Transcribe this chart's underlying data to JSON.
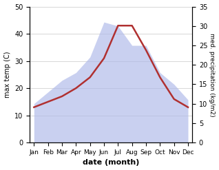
{
  "months": [
    "Jan",
    "Feb",
    "Mar",
    "Apr",
    "May",
    "Jun",
    "Jul",
    "Aug",
    "Sep",
    "Oct",
    "Nov",
    "Dec"
  ],
  "max_temp": [
    13,
    15,
    17,
    20,
    24,
    31,
    43,
    43,
    34,
    24,
    16,
    13
  ],
  "precipitation": [
    10,
    13,
    16,
    18,
    22,
    31,
    30,
    25,
    25,
    18,
    15,
    11
  ],
  "temp_ylim": [
    0,
    50
  ],
  "precip_ylim": [
    0,
    35
  ],
  "temp_color": "#b03030",
  "precip_fill_color": "#adb8e8",
  "precip_fill_alpha": 0.65,
  "xlabel": "date (month)",
  "ylabel_left": "max temp (C)",
  "ylabel_right": "med. precipitation (kg/m2)",
  "bg_color": "#ffffff",
  "grid_color": "#c8c8c8"
}
